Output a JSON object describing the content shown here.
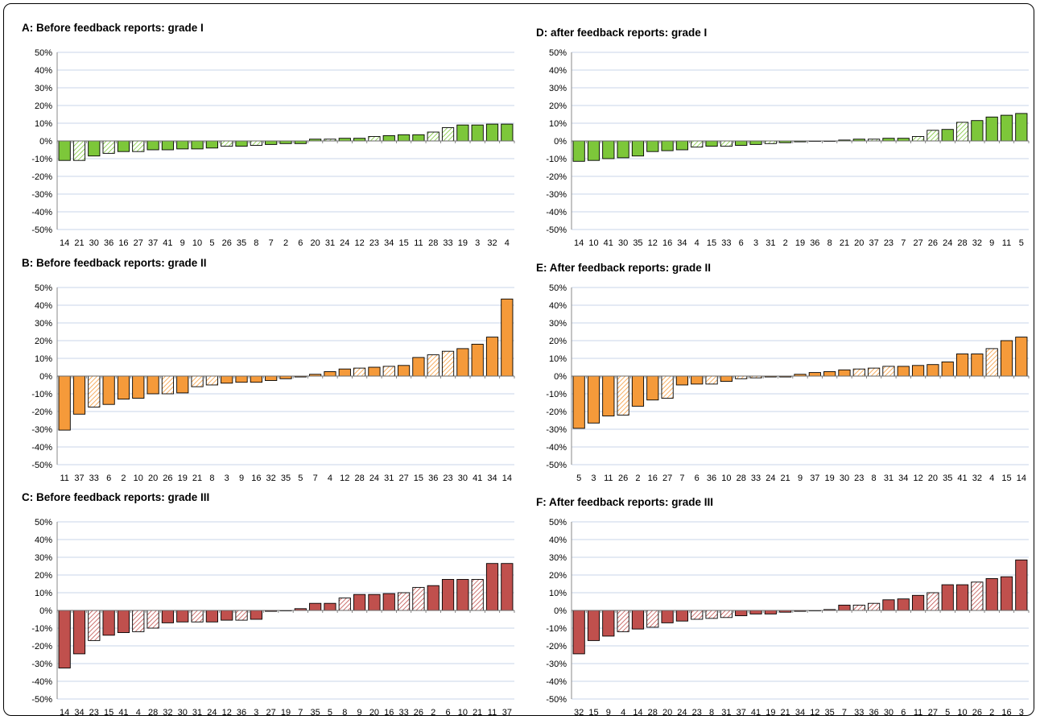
{
  "chart_data": [
    {
      "panel": "A",
      "type": "bar",
      "title": "A: Before feedback reports: grade I",
      "color": "#7dc73a",
      "ylim": [
        -50,
        50
      ],
      "yticks": [
        "50%",
        "40%",
        "30%",
        "20%",
        "10%",
        "0%",
        "-10%",
        "-20%",
        "-30%",
        "-40%",
        "-50%"
      ],
      "categories": [
        "14",
        "21",
        "30",
        "36",
        "16",
        "27",
        "37",
        "41",
        "9",
        "10",
        "5",
        "26",
        "35",
        "8",
        "7",
        "2",
        "6",
        "20",
        "31",
        "24",
        "12",
        "23",
        "34",
        "15",
        "11",
        "28",
        "33",
        "19",
        "3",
        "32",
        "4"
      ],
      "values": [
        -11,
        -11,
        -8.5,
        -7,
        -6,
        -6,
        -5,
        -5,
        -4.5,
        -4.5,
        -4,
        -3,
        -3,
        -2.5,
        -2,
        -1.5,
        -1.5,
        1,
        1,
        1.5,
        1.5,
        2.5,
        3,
        3.5,
        3.5,
        5,
        7.5,
        9,
        9,
        9.5,
        9.5
      ],
      "hatched": [
        0,
        1,
        0,
        1,
        0,
        1,
        0,
        0,
        0,
        0,
        0,
        1,
        0,
        1,
        0,
        0,
        0,
        0,
        1,
        0,
        0,
        1,
        0,
        0,
        0,
        1,
        1,
        0,
        0,
        0,
        0
      ],
      "grid": true
    },
    {
      "panel": "B",
      "type": "bar",
      "title": "B: Before feedback reports: grade II",
      "color": "#f59a3a",
      "ylim": [
        -50,
        50
      ],
      "yticks": [
        "50%",
        "40%",
        "30%",
        "20%",
        "10%",
        "0%",
        "-10%",
        "-20%",
        "-30%",
        "-40%",
        "-50%"
      ],
      "categories": [
        "11",
        "37",
        "33",
        "6",
        "2",
        "10",
        "20",
        "26",
        "19",
        "21",
        "8",
        "3",
        "9",
        "16",
        "32",
        "35",
        "5",
        "7",
        "4",
        "12",
        "28",
        "24",
        "31",
        "27",
        "15",
        "36",
        "23",
        "30",
        "41",
        "34",
        "14"
      ],
      "values": [
        -30.5,
        -21.5,
        -17.5,
        -16,
        -13,
        -12.5,
        -10,
        -10,
        -9.5,
        -6,
        -5,
        -4,
        -3.5,
        -3.5,
        -2.5,
        -1.5,
        -0.5,
        1,
        2.5,
        4,
        4.5,
        5,
        5.5,
        6,
        10.5,
        12,
        14,
        15.5,
        18,
        22,
        43.5
      ],
      "hatched": [
        0,
        0,
        1,
        0,
        0,
        0,
        0,
        1,
        0,
        1,
        1,
        0,
        0,
        0,
        0,
        0,
        0,
        0,
        0,
        0,
        1,
        0,
        1,
        0,
        0,
        1,
        1,
        0,
        0,
        0,
        0
      ],
      "grid": true
    },
    {
      "panel": "C",
      "type": "bar",
      "title": "C: Before feedback reports: grade III",
      "color": "#c0504d",
      "ylim": [
        -50,
        50
      ],
      "yticks": [
        "50%",
        "40%",
        "30%",
        "20%",
        "10%",
        "0%",
        "-10%",
        "-20%",
        "-30%",
        "-40%",
        "-50%"
      ],
      "categories": [
        "14",
        "34",
        "23",
        "15",
        "41",
        "4",
        "28",
        "32",
        "30",
        "31",
        "24",
        "12",
        "36",
        "3",
        "27",
        "19",
        "7",
        "35",
        "5",
        "8",
        "9",
        "20",
        "16",
        "33",
        "26",
        "2",
        "6",
        "10",
        "21",
        "11",
        "37"
      ],
      "values": [
        -32.5,
        -24.5,
        -17,
        -14,
        -12.5,
        -12,
        -10,
        -7,
        -6.5,
        -6.5,
        -6.5,
        -5.5,
        -5.5,
        -5,
        -0.5,
        0,
        1,
        4,
        4,
        7,
        9,
        9,
        9.5,
        10,
        13,
        14,
        17.5,
        17.5,
        17.5,
        26.5,
        26.5
      ],
      "hatched": [
        0,
        0,
        1,
        0,
        0,
        1,
        1,
        0,
        0,
        1,
        0,
        0,
        1,
        0,
        0,
        0,
        0,
        0,
        0,
        1,
        0,
        0,
        0,
        1,
        1,
        0,
        0,
        0,
        1,
        0,
        0
      ],
      "grid": true
    },
    {
      "panel": "D",
      "type": "bar",
      "title": "D: after feedback reports: grade I",
      "color": "#7dc73a",
      "ylim": [
        -50,
        50
      ],
      "yticks": [
        "50%",
        "40%",
        "30%",
        "20%",
        "10%",
        "0%",
        "-10%",
        "-20%",
        "-30%",
        "-40%",
        "-50%"
      ],
      "categories": [
        "14",
        "10",
        "41",
        "30",
        "35",
        "12",
        "16",
        "34",
        "4",
        "15",
        "33",
        "6",
        "3",
        "31",
        "2",
        "19",
        "36",
        "8",
        "21",
        "20",
        "37",
        "23",
        "7",
        "27",
        "26",
        "24",
        "28",
        "32",
        "9",
        "11",
        "5"
      ],
      "values": [
        -11.5,
        -11,
        -10,
        -9.5,
        -8.5,
        -6,
        -5.5,
        -5,
        -3.5,
        -3,
        -3,
        -2.5,
        -2,
        -1.5,
        -1,
        -0.5,
        0,
        0,
        0.5,
        1,
        1,
        1.5,
        1.5,
        2.5,
        6,
        6.5,
        10.5,
        11.5,
        13.5,
        14.5,
        15.5
      ],
      "hatched": [
        0,
        0,
        0,
        0,
        0,
        0,
        0,
        0,
        1,
        0,
        1,
        0,
        0,
        1,
        0,
        0,
        0,
        0,
        0,
        0,
        1,
        0,
        0,
        1,
        1,
        0,
        1,
        0,
        0,
        0,
        0
      ],
      "grid": true
    },
    {
      "panel": "E",
      "type": "bar",
      "title": "E: After feedback reports: grade II",
      "color": "#f59a3a",
      "ylim": [
        -50,
        50
      ],
      "yticks": [
        "50%",
        "40%",
        "30%",
        "20%",
        "10%",
        "0%",
        "-10%",
        "-20%",
        "-30%",
        "-40%",
        "-50%"
      ],
      "categories": [
        "5",
        "3",
        "11",
        "26",
        "2",
        "16",
        "27",
        "7",
        "6",
        "36",
        "10",
        "28",
        "33",
        "24",
        "21",
        "9",
        "37",
        "19",
        "30",
        "23",
        "8",
        "31",
        "34",
        "12",
        "20",
        "35",
        "41",
        "32",
        "4",
        "15",
        "14"
      ],
      "values": [
        -29.5,
        -26.5,
        -22.5,
        -22,
        -17,
        -13.5,
        -12.5,
        -5,
        -4.5,
        -4.5,
        -3,
        -1.5,
        -1,
        -0.5,
        -0.5,
        1,
        2,
        2.5,
        3.5,
        4,
        4.5,
        5.5,
        5.5,
        6,
        6.5,
        8,
        12.5,
        12.5,
        15.5,
        20,
        22
      ],
      "hatched": [
        0,
        0,
        0,
        1,
        0,
        0,
        1,
        0,
        0,
        1,
        0,
        1,
        1,
        0,
        0,
        0,
        0,
        0,
        0,
        1,
        1,
        1,
        0,
        0,
        0,
        0,
        0,
        0,
        1,
        0,
        0
      ],
      "grid": true
    },
    {
      "panel": "F",
      "type": "bar",
      "title": "F: After feedback reports: grade III",
      "color": "#c0504d",
      "ylim": [
        -50,
        50
      ],
      "yticks": [
        "50%",
        "40%",
        "30%",
        "20%",
        "10%",
        "0%",
        "-10%",
        "-20%",
        "-30%",
        "-40%",
        "-50%"
      ],
      "categories": [
        "32",
        "15",
        "9",
        "4",
        "14",
        "28",
        "20",
        "24",
        "23",
        "8",
        "31",
        "37",
        "41",
        "19",
        "21",
        "34",
        "12",
        "35",
        "7",
        "33",
        "36",
        "30",
        "6",
        "11",
        "27",
        "5",
        "10",
        "26",
        "2",
        "16",
        "3"
      ],
      "values": [
        -24.5,
        -17,
        -14.5,
        -12,
        -10.5,
        -9.5,
        -7,
        -6,
        -5,
        -4.5,
        -4,
        -3,
        -2,
        -2,
        -1,
        -0.5,
        0,
        0.5,
        3,
        3,
        4,
        6,
        6.5,
        8.5,
        10,
        14.5,
        14.5,
        16,
        18,
        19,
        28.5
      ],
      "hatched": [
        0,
        0,
        0,
        1,
        0,
        1,
        0,
        0,
        1,
        1,
        1,
        0,
        0,
        0,
        0,
        0,
        0,
        0,
        0,
        1,
        1,
        0,
        0,
        0,
        1,
        0,
        0,
        1,
        0,
        0,
        0
      ],
      "grid": true
    }
  ]
}
